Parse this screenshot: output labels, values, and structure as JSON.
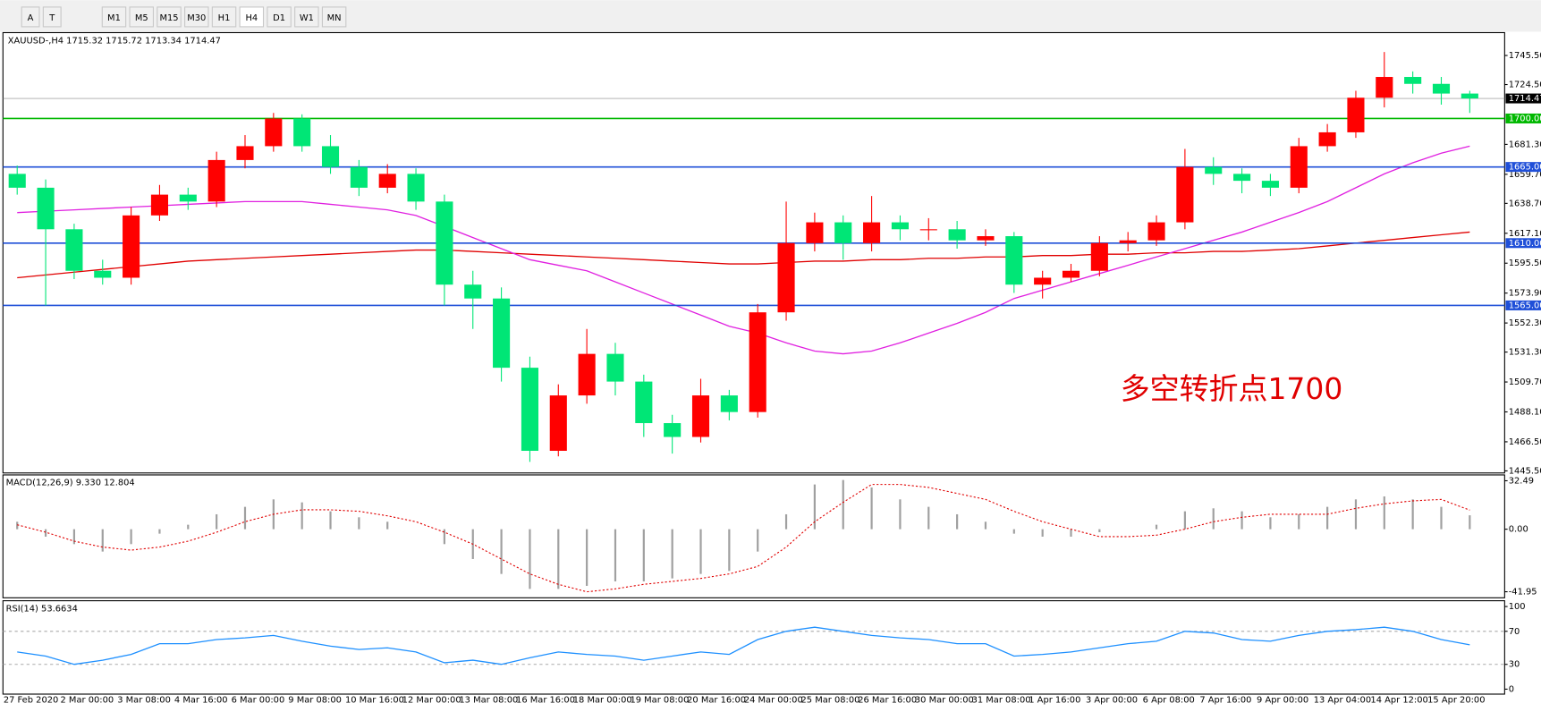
{
  "toolbar": [
    "A",
    "T",
    "M1",
    "M5",
    "M15",
    "M30",
    "H1",
    "H4",
    "D1",
    "W1",
    "MN"
  ],
  "chart_data": [
    {
      "type": "candlestick",
      "title": "XAUUSD-,H4  1715.32 1715.72 1713.34 1714.47",
      "annotation": "多空转折点1700",
      "up_color": "#ff0000",
      "down_color": "#00e676",
      "categories": [
        "27 Feb 2020",
        null,
        "2 Mar 00:00",
        null,
        "3 Mar 08:00",
        null,
        "4 Mar 16:00",
        null,
        "6 Mar 00:00",
        null,
        "9 Mar 08:00",
        null,
        "10 Mar 16:00",
        null,
        "12 Mar 00:00",
        null,
        "13 Mar 08:00",
        null,
        "16 Mar 16:00",
        null,
        "18 Mar 00:00",
        null,
        "19 Mar 08:00",
        null,
        "20 Mar 16:00",
        null,
        "24 Mar 00:00",
        null,
        "25 Mar 08:00",
        null,
        "26 Mar 16:00",
        null,
        "30 Mar 00:00",
        null,
        "31 Mar 08:00",
        null,
        "1 Apr 16:00",
        null,
        "3 Apr 00:00",
        null,
        "6 Apr 08:00",
        null,
        "7 Apr 16:00",
        null,
        "9 Apr 00:00",
        null,
        "13 Apr 04:00",
        null,
        "14 Apr 12:00",
        null,
        "15 Apr 20:00",
        null
      ],
      "open": [
        1660,
        1650,
        1620,
        1590,
        1585,
        1630,
        1645,
        1640,
        1670,
        1680,
        1700,
        1680,
        1665,
        1650,
        1660,
        1640,
        1580,
        1570,
        1520,
        1460,
        1500,
        1530,
        1510,
        1480,
        1470,
        1500,
        1488,
        1560,
        1610,
        1625,
        1610,
        1625,
        1620,
        1620,
        1612,
        1615,
        1580,
        1585,
        1590,
        1610,
        1612,
        1625,
        1665,
        1660,
        1655,
        1650,
        1680,
        1690,
        1715,
        1730,
        1725,
        1718
      ],
      "high": [
        1666,
        1656,
        1624,
        1598,
        1636,
        1652,
        1650,
        1676,
        1688,
        1704,
        1703,
        1688,
        1670,
        1667,
        1664,
        1645,
        1590,
        1578,
        1528,
        1508,
        1548,
        1538,
        1515,
        1486,
        1512,
        1504,
        1566,
        1640,
        1632,
        1630,
        1644,
        1630,
        1628,
        1626,
        1620,
        1618,
        1590,
        1595,
        1615,
        1618,
        1630,
        1678,
        1672,
        1664,
        1660,
        1686,
        1696,
        1720,
        1748,
        1734,
        1730,
        1720
      ],
      "low": [
        1645,
        1565,
        1584,
        1580,
        1580,
        1626,
        1634,
        1636,
        1664,
        1676,
        1676,
        1660,
        1644,
        1646,
        1634,
        1565,
        1548,
        1510,
        1452,
        1456,
        1494,
        1500,
        1470,
        1458,
        1466,
        1482,
        1484,
        1554,
        1604,
        1598,
        1604,
        1612,
        1612,
        1606,
        1608,
        1574,
        1570,
        1582,
        1586,
        1604,
        1608,
        1620,
        1652,
        1646,
        1644,
        1646,
        1676,
        1686,
        1708,
        1718,
        1710,
        1704
      ],
      "close": [
        1650,
        1620,
        1590,
        1585,
        1630,
        1645,
        1640,
        1670,
        1680,
        1700,
        1680,
        1665,
        1650,
        1660,
        1640,
        1580,
        1570,
        1520,
        1460,
        1500,
        1530,
        1510,
        1480,
        1470,
        1500,
        1488,
        1560,
        1610,
        1625,
        1610,
        1625,
        1620,
        1620,
        1612,
        1615,
        1580,
        1585,
        1590,
        1610,
        1612,
        1625,
        1665,
        1660,
        1655,
        1650,
        1680,
        1690,
        1715,
        1730,
        1725,
        1718,
        1714.47
      ],
      "overlays": [
        {
          "color": "#e00000",
          "values": [
            1585,
            1587,
            1589,
            1591,
            1593,
            1595,
            1597,
            1598,
            1599,
            1600,
            1601,
            1602,
            1603,
            1604,
            1605,
            1605,
            1604,
            1603,
            1602,
            1601,
            1600,
            1599,
            1598,
            1597,
            1596,
            1595,
            1595,
            1596,
            1597,
            1597,
            1598,
            1598,
            1599,
            1599,
            1600,
            1600,
            1601,
            1601,
            1602,
            1602,
            1603,
            1603,
            1604,
            1604,
            1605,
            1606,
            1608,
            1610,
            1612,
            1614,
            1616,
            1618
          ]
        },
        {
          "color": "#e020e0",
          "values": [
            1632,
            1633,
            1634,
            1635,
            1636,
            1637,
            1638,
            1639,
            1640,
            1640,
            1640,
            1638,
            1636,
            1634,
            1630,
            1622,
            1614,
            1606,
            1598,
            1594,
            1590,
            1582,
            1574,
            1566,
            1558,
            1550,
            1545,
            1538,
            1532,
            1530,
            1532,
            1538,
            1545,
            1552,
            1560,
            1570,
            1576,
            1582,
            1588,
            1594,
            1600,
            1606,
            1612,
            1618,
            1625,
            1632,
            1640,
            1650,
            1660,
            1668,
            1675,
            1680
          ]
        }
      ],
      "levels": [
        {
          "value": 1700,
          "label": "1700.00",
          "color": "#00b800"
        },
        {
          "value": 1665,
          "label": "1665.00",
          "color": "#1f4fd8"
        },
        {
          "value": 1610,
          "label": "1610.00",
          "color": "#1f4fd8"
        },
        {
          "value": 1565,
          "label": "1565.00",
          "color": "#1f4fd8"
        }
      ],
      "last": {
        "value": 1714.47,
        "label": "1714.47"
      },
      "ylim": [
        1444,
        1762
      ],
      "yticks": [
        {
          "value": 1745.5,
          "label": "1745.50"
        },
        {
          "value": 1724.5,
          "label": "1724.50"
        },
        {
          "value": 1681.3,
          "label": "1681.30"
        },
        {
          "value": 1659.7,
          "label": "1659.70"
        },
        {
          "value": 1638.7,
          "label": "1638.70"
        },
        {
          "value": 1617.1,
          "label": "1617.10"
        },
        {
          "value": 1595.5,
          "label": "1595.50"
        },
        {
          "value": 1573.9,
          "label": "1573.90"
        },
        {
          "value": 1552.3,
          "label": "1552.30"
        },
        {
          "value": 1531.3,
          "label": "1531.30"
        },
        {
          "value": 1509.7,
          "label": "1509.70"
        },
        {
          "value": 1488.1,
          "label": "1488.10"
        },
        {
          "value": 1466.5,
          "label": "1466.50"
        },
        {
          "value": 1445.5,
          "label": "1445.50"
        }
      ]
    },
    {
      "type": "bar",
      "title": "MACD(12,26,9) 9.330 12.804",
      "color": "#a0a0a0",
      "signal_color": "#e00000",
      "values": [
        5,
        -5,
        -10,
        -15,
        -10,
        -3,
        3,
        10,
        15,
        20,
        18,
        12,
        8,
        5,
        0,
        -10,
        -20,
        -30,
        -40,
        -40,
        -38,
        -35,
        -35,
        -33,
        -30,
        -28,
        -15,
        10,
        30,
        33,
        28,
        20,
        15,
        10,
        5,
        -3,
        -5,
        -5,
        -2,
        0,
        3,
        12,
        14,
        12,
        8,
        10,
        15,
        20,
        22,
        20,
        15,
        9.33
      ],
      "signal": [
        3,
        -2,
        -8,
        -12,
        -14,
        -12,
        -8,
        -2,
        5,
        10,
        13,
        13,
        12,
        9,
        5,
        -2,
        -10,
        -20,
        -30,
        -37,
        -42,
        -40,
        -37,
        -35,
        -33,
        -30,
        -25,
        -12,
        5,
        18,
        30,
        30,
        28,
        24,
        20,
        12,
        5,
        0,
        -5,
        -5,
        -4,
        0,
        5,
        8,
        10,
        10,
        10,
        14,
        17,
        19,
        20,
        12.804
      ],
      "ylim": [
        -46,
        36.4
      ],
      "yticks": [
        {
          "value": 32.49,
          "label": "32.49"
        },
        {
          "value": 0,
          "label": "0.00"
        },
        -41.95
      ]
    },
    {
      "type": "line",
      "title": "RSI(14) 53.6634",
      "color": "#1e90ff",
      "values": [
        45,
        40,
        30,
        35,
        42,
        55,
        55,
        60,
        62,
        65,
        58,
        52,
        48,
        50,
        45,
        32,
        35,
        30,
        38,
        45,
        42,
        40,
        35,
        40,
        45,
        42,
        60,
        70,
        75,
        70,
        65,
        62,
        60,
        55,
        55,
        40,
        42,
        45,
        50,
        55,
        58,
        70,
        68,
        60,
        58,
        65,
        70,
        72,
        75,
        70,
        60,
        53.66
      ],
      "ylim": [
        -6,
        107
      ],
      "yticks": [
        100,
        70,
        30,
        0
      ]
    }
  ]
}
